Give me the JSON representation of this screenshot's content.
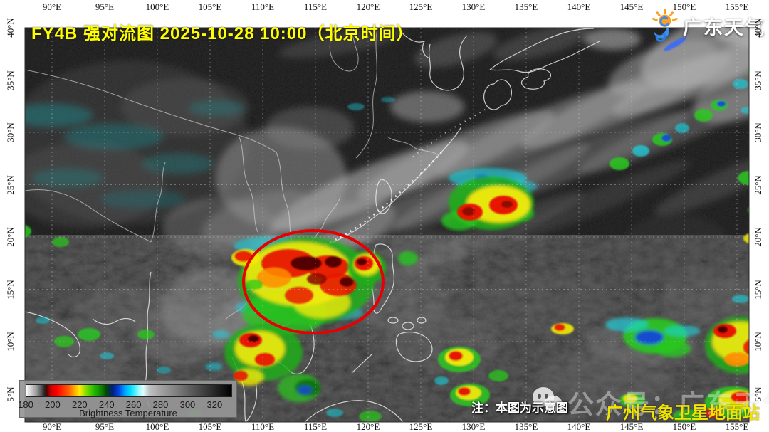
{
  "header": {
    "title": "FY4B 强对流图 2025-10-28 10:00（北京时间）"
  },
  "logo": {
    "name": "广东天气",
    "sun_color": "#ff9d1c",
    "swirl_color": "#3b8df0"
  },
  "grid": {
    "lon_labels": [
      "90°E",
      "95°E",
      "100°E",
      "105°E",
      "110°E",
      "115°E",
      "120°E",
      "125°E",
      "130°E",
      "135°E",
      "140°E",
      "145°E",
      "150°E",
      "155°E"
    ],
    "lat_labels": [
      "40°N",
      "35°N",
      "30°N",
      "25°N",
      "20°N",
      "15°N",
      "10°N",
      "5°N"
    ]
  },
  "colorbar": {
    "ticks": [
      180,
      200,
      220,
      240,
      260,
      280,
      300,
      320
    ],
    "range_min": 180,
    "range_max": 333,
    "label": "Brightness Temperature"
  },
  "annotations": {
    "note": "注：本图为示意图",
    "watermark": "公众号：广东天气",
    "station": "广州气象卫星地面站",
    "ellipse_color": "#e60000"
  },
  "colors": {
    "title_text": "#ffff00",
    "station_text": "#f0e400",
    "coastline": "#e8e8e8"
  }
}
